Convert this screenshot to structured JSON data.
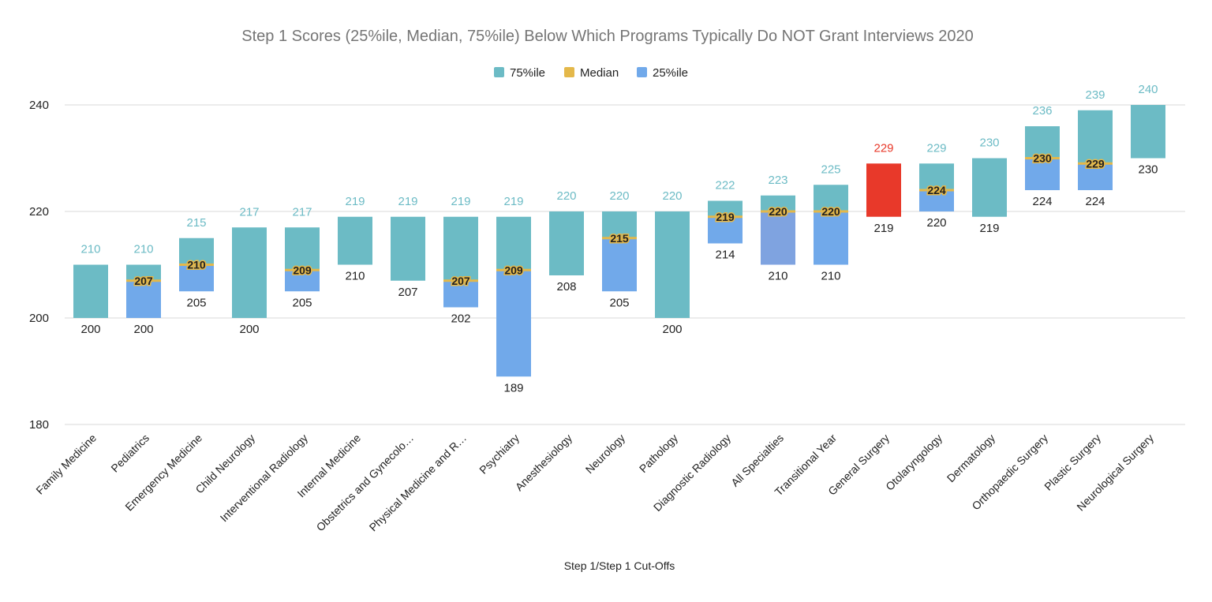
{
  "chart_data": {
    "type": "bar",
    "title": "Step 1 Scores (25%ile, Median, 75%ile) Below Which Programs Typically Do NOT Grant Interviews 2020",
    "xlabel": "Step 1/Step 1 Cut-Offs",
    "ylabel": "",
    "ylim": [
      180,
      240
    ],
    "yticks": [
      180,
      200,
      220,
      240
    ],
    "grid": true,
    "legend_position": "top",
    "legend": [
      {
        "name": "75%ile",
        "color": "#6cbbc5"
      },
      {
        "name": "Median",
        "color": "#e4b84a"
      },
      {
        "name": "25%ile",
        "color": "#71a9ea"
      }
    ],
    "colors": {
      "p75": "#6cbbc5",
      "median": "#e4b84a",
      "p25": "#71a9ea",
      "highlight": "#e8392a",
      "highlight_label": "#e8392a",
      "all_specialties_p25": "#7fa3e0"
    },
    "categories": [
      "Family Medicine",
      "Pediatrics",
      "Emergency Medicine",
      "Child Neurology",
      "Interventional Radiology",
      "Internal Medicine",
      "Obstetrics and Gynecolo…",
      "Physical Medicine and R…",
      "Psychiatry",
      "Anesthesiology",
      "Neurology",
      "Pathology",
      "Diagnostic Radiology",
      "All Specialties",
      "Transitional Year",
      "General Surgery",
      "Otolaryngology",
      "Dermatology",
      "Orthopaedic Surgery",
      "Plastic Surgery",
      "Neurological Surgery"
    ],
    "series": [
      {
        "name": "75%ile",
        "values": [
          210,
          210,
          215,
          217,
          217,
          219,
          219,
          219,
          219,
          220,
          220,
          220,
          222,
          223,
          225,
          229,
          229,
          230,
          236,
          239,
          240
        ]
      },
      {
        "name": "Median",
        "values": [
          null,
          207,
          210,
          null,
          209,
          null,
          null,
          207,
          209,
          null,
          215,
          null,
          219,
          220,
          220,
          null,
          224,
          null,
          230,
          229,
          null
        ]
      },
      {
        "name": "25%ile",
        "values": [
          null,
          200,
          205,
          null,
          205,
          null,
          null,
          202,
          189,
          null,
          205,
          null,
          214,
          210,
          210,
          null,
          220,
          null,
          224,
          224,
          null
        ]
      }
    ],
    "bottom_labels": [
      200,
      200,
      205,
      200,
      205,
      210,
      207,
      202,
      189,
      208,
      205,
      200,
      214,
      210,
      210,
      219,
      220,
      219,
      224,
      224,
      230
    ],
    "highlight_category": "General Surgery"
  }
}
